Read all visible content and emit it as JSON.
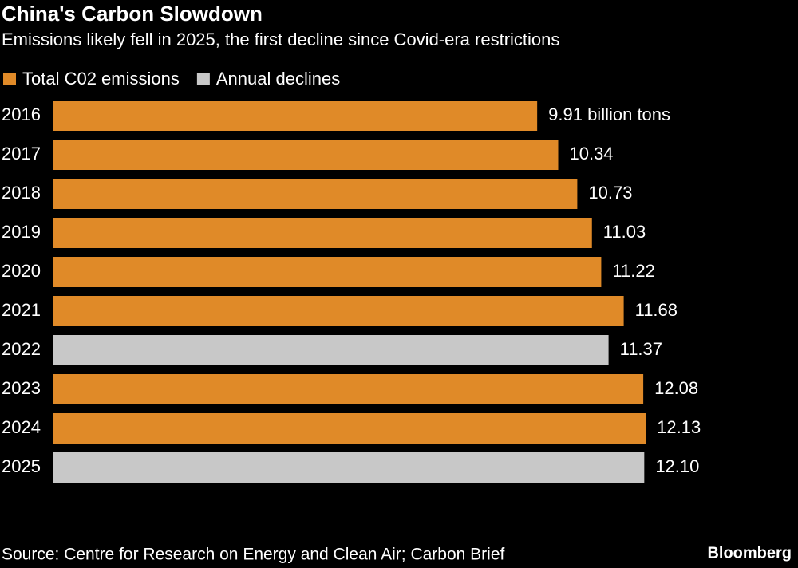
{
  "chart_data": {
    "type": "hbar",
    "title": "China's Carbon Slowdown",
    "subtitle": "Emissions likely fell in 2025, the first decline since Covid-era restrictions",
    "categories": [
      "2016",
      "2017",
      "2018",
      "2019",
      "2020",
      "2021",
      "2022",
      "2023",
      "2024",
      "2025"
    ],
    "series": [
      {
        "name": "Total C02 emissions",
        "color": "#e08a28",
        "values": [
          9.91,
          10.34,
          10.73,
          11.03,
          11.22,
          11.68,
          null,
          12.08,
          12.13,
          null
        ],
        "value_labels": [
          "9.91 billion tons",
          "10.34",
          "10.73",
          "11.03",
          "11.22",
          "11.68",
          null,
          "12.08",
          "12.13",
          null
        ]
      },
      {
        "name": "Annual declines",
        "color": "#c8c8c8",
        "values": [
          null,
          null,
          null,
          null,
          null,
          null,
          11.37,
          null,
          null,
          12.1
        ],
        "value_labels": [
          null,
          null,
          null,
          null,
          null,
          null,
          "11.37",
          null,
          null,
          "12.10"
        ]
      }
    ],
    "xlim": [
      0,
      15
    ],
    "source": "Source: Centre for Research on Energy and Clean Air; Carbon Brief",
    "brand": "Bloomberg"
  }
}
